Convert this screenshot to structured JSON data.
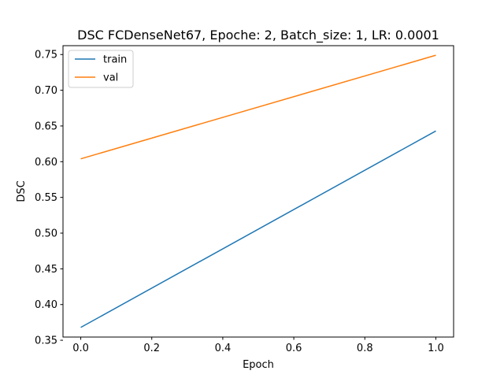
{
  "chart_data": {
    "type": "line",
    "title": "DSC FCDenseNet67, Epoche: 2, Batch_size: 1, LR: 0.0001",
    "xlabel": "Epoch",
    "ylabel": "DSC",
    "xlim": [
      -0.05,
      1.05
    ],
    "ylim": [
      0.3545,
      0.7624
    ],
    "xticks": [
      "0.0",
      "0.2",
      "0.4",
      "0.6",
      "0.8",
      "1.0"
    ],
    "yticks": [
      "0.35",
      "0.40",
      "0.45",
      "0.50",
      "0.55",
      "0.60",
      "0.65",
      "0.70",
      "0.75"
    ],
    "x": [
      0,
      1
    ],
    "series": [
      {
        "name": "train",
        "values": [
          0.368,
          0.643
        ],
        "color": "#1f77b4"
      },
      {
        "name": "val",
        "values": [
          0.604,
          0.749
        ],
        "color": "#ff7f0e"
      }
    ],
    "grid": false,
    "legend_position": "top-left"
  }
}
